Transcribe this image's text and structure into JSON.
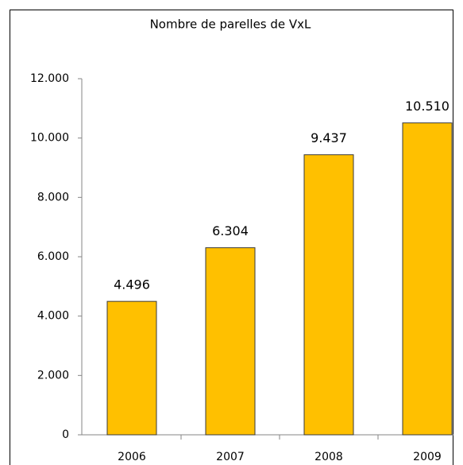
{
  "chart_data": {
    "type": "bar",
    "title": "Nombre de parelles de VxL",
    "categories": [
      "2006",
      "2007",
      "2008",
      "2009"
    ],
    "values": [
      4496,
      6304,
      9437,
      10510
    ],
    "value_labels": [
      "4.496",
      "6.304",
      "9.437",
      "10.510"
    ],
    "color": "#ffc000",
    "ylim": [
      0,
      12000
    ],
    "yticks": [
      0,
      {
        "value": 2000,
        "label": "2.000"
      },
      {
        "value": 4000,
        "label": "4.000"
      },
      {
        "value": 6000,
        "label": "6.000"
      },
      {
        "value": 8000,
        "label": "8.000"
      },
      {
        "value": 10000,
        "label": "10.000"
      },
      {
        "value": 12000,
        "label": "12.000"
      }
    ]
  }
}
